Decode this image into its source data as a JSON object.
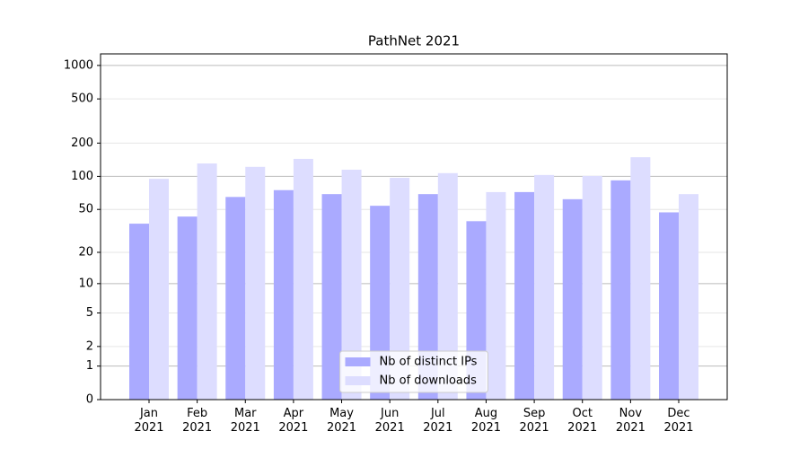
{
  "chart_data": {
    "type": "bar",
    "title": "PathNet 2021",
    "categories": [
      "Jan\n2021",
      "Feb\n2021",
      "Mar\n2021",
      "Apr\n2021",
      "May\n2021",
      "Jun\n2021",
      "Jul\n2021",
      "Aug\n2021",
      "Sep\n2021",
      "Oct\n2021",
      "Nov\n2021",
      "Dec\n2021"
    ],
    "series": [
      {
        "name": "Nb of distinct IPs",
        "color": "#aaaaff",
        "values": [
          37,
          43,
          65,
          75,
          69,
          54,
          69,
          39,
          72,
          62,
          92,
          47
        ]
      },
      {
        "name": "Nb of downloads",
        "color": "#ddddff",
        "values": [
          95,
          131,
          122,
          144,
          115,
          97,
          107,
          72,
          103,
          101,
          149,
          69
        ]
      }
    ],
    "y_scale": "log1p",
    "ylim": [
      0,
      1270
    ],
    "yticks": [
      0,
      1,
      2,
      5,
      10,
      20,
      50,
      100,
      200,
      500,
      1000
    ],
    "grid": true,
    "legend": "lower center"
  }
}
